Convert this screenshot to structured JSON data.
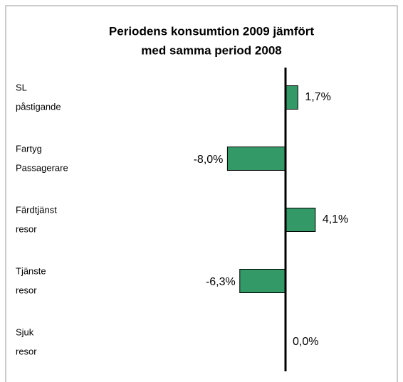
{
  "chart_data": {
    "type": "hbar",
    "title": [
      "Periodens konsumtion 2009 jämfört",
      "med samma period 2008"
    ],
    "categories": [
      [
        "SL",
        "påstigande"
      ],
      [
        "Fartyg",
        "Passagerare"
      ],
      [
        "Färdtjänst",
        "resor"
      ],
      [
        "Tjänste",
        "resor"
      ],
      [
        "Sjuk",
        "resor"
      ]
    ],
    "values": [
      1.7,
      -8.0,
      4.1,
      -6.3,
      0.0
    ],
    "value_labels": [
      "1,7%",
      "-8,0%",
      "4,1%",
      "-6,3%",
      "0,0%"
    ],
    "color": "#339966"
  }
}
